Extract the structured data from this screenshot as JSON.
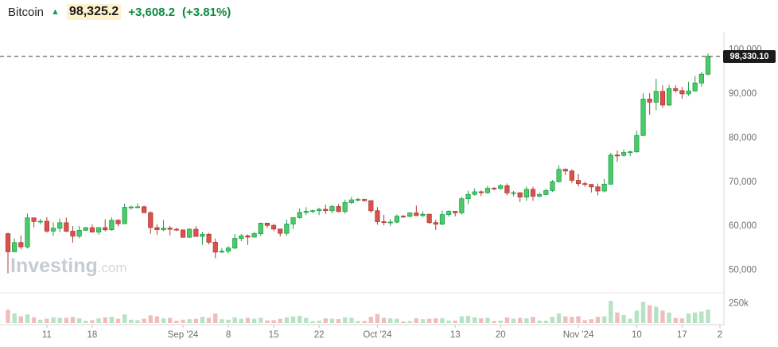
{
  "header": {
    "symbol": "Bitcoin",
    "arrow": "▲",
    "price": "98,325.2",
    "change": "+3,608.2",
    "change_pct": "(+3.81%)"
  },
  "watermark": {
    "bold": "Investing",
    "light": ".com"
  },
  "price_tag": "98,330.10",
  "colors": {
    "up": "#4ccb68",
    "up_border": "#1e9e4a",
    "down": "#d9524e",
    "down_border": "#b03a36",
    "vol_up": "#b5e3c3",
    "vol_down": "#f0bdbd",
    "axis_text": "#6f6f6f",
    "border": "#d8d8d8",
    "dashed_line": "#3c3c3c"
  },
  "chart_data": {
    "type": "candlestick",
    "title": "Bitcoin daily price with volume",
    "xlabel": "",
    "ylabel": "",
    "last_price": 98330.1,
    "y_axis": {
      "min": 46500,
      "max": 103000,
      "ticks": [
        100000,
        90000,
        80000,
        70000,
        60000,
        50000
      ],
      "labels": [
        "100,000",
        "90,000",
        "80,000",
        "70,000",
        "60,000",
        "50,000"
      ]
    },
    "volume_axis": {
      "tick_label": "250k",
      "tick_value": 250000,
      "max": 280000
    },
    "x_ticks": [
      {
        "index": 6,
        "label": "11"
      },
      {
        "index": 13,
        "label": "18"
      },
      {
        "index": 27,
        "label": "Sep '24"
      },
      {
        "index": 34,
        "label": "8"
      },
      {
        "index": 41,
        "label": "15"
      },
      {
        "index": 48,
        "label": "22"
      },
      {
        "index": 57,
        "label": "Oct '24"
      },
      {
        "index": 69,
        "label": "13"
      },
      {
        "index": 76,
        "label": "20"
      },
      {
        "index": 88,
        "label": "Nov '24"
      },
      {
        "index": 97,
        "label": "10"
      },
      {
        "index": 104,
        "label": "17"
      },
      {
        "index": 111,
        "label": "2"
      }
    ],
    "columns": [
      "date",
      "open",
      "high",
      "low",
      "close",
      "volume"
    ],
    "candles": [
      [
        "Aug 5",
        58120,
        58350,
        49110,
        54020,
        140000
      ],
      [
        "Aug 6",
        54020,
        57050,
        53950,
        56100,
        100000
      ],
      [
        "Aug 7",
        56100,
        57700,
        54600,
        55130,
        70000
      ],
      [
        "Aug 8",
        55130,
        62700,
        54750,
        61710,
        90000
      ],
      [
        "Aug 9",
        61710,
        61760,
        59560,
        60880,
        60000
      ],
      [
        "Aug 10",
        60880,
        61470,
        60250,
        60945,
        35000
      ],
      [
        "Aug 11",
        60945,
        61850,
        58350,
        58715,
        45000
      ],
      [
        "Aug 12",
        58715,
        60700,
        57660,
        59350,
        60000
      ],
      [
        "Aug 13",
        59350,
        61550,
        58450,
        60600,
        55000
      ],
      [
        "Aug 14",
        60600,
        61790,
        58470,
        58680,
        55000
      ],
      [
        "Aug 15",
        58680,
        59850,
        56100,
        57560,
        65000
      ],
      [
        "Aug 16",
        57560,
        59850,
        57100,
        58890,
        50000
      ],
      [
        "Aug 17",
        58890,
        59650,
        58830,
        59480,
        25000
      ],
      [
        "Aug 18",
        59480,
        60250,
        58450,
        58480,
        30000
      ],
      [
        "Aug 19",
        58480,
        59610,
        57880,
        59490,
        50000
      ],
      [
        "Aug 20",
        59490,
        61400,
        58620,
        59010,
        60000
      ],
      [
        "Aug 21",
        59010,
        61830,
        58790,
        61170,
        65000
      ],
      [
        "Aug 22",
        61170,
        61400,
        59750,
        60380,
        45000
      ],
      [
        "Aug 23",
        60380,
        64950,
        60370,
        64090,
        90000
      ],
      [
        "Aug 24",
        64090,
        64500,
        63580,
        64170,
        35000
      ],
      [
        "Aug 25",
        64170,
        65000,
        63830,
        64220,
        30000
      ],
      [
        "Aug 26",
        64220,
        64480,
        62830,
        62880,
        45000
      ],
      [
        "Aug 27",
        62880,
        63210,
        58120,
        59505,
        80000
      ],
      [
        "Aug 28",
        59505,
        60230,
        57860,
        59030,
        70000
      ],
      [
        "Aug 29",
        59030,
        61180,
        58740,
        59388,
        50000
      ],
      [
        "Aug 30",
        59388,
        59900,
        57730,
        59120,
        55000
      ],
      [
        "Aug 31",
        59120,
        59450,
        58768,
        58970,
        25000
      ],
      [
        "Sep 1",
        58970,
        59070,
        57210,
        57300,
        35000
      ],
      [
        "Sep 2",
        57300,
        59425,
        57128,
        59130,
        40000
      ],
      [
        "Sep 3",
        59130,
        59815,
        57435,
        57490,
        45000
      ],
      [
        "Sep 4",
        57490,
        58519,
        55606,
        58000,
        65000
      ],
      [
        "Sep 5",
        58000,
        58300,
        55650,
        56180,
        55000
      ],
      [
        "Sep 6",
        56180,
        57010,
        52550,
        53950,
        100000
      ],
      [
        "Sep 7",
        53950,
        54850,
        53740,
        54160,
        40000
      ],
      [
        "Sep 8",
        54160,
        55300,
        53630,
        54870,
        35000
      ],
      [
        "Sep 9",
        54870,
        58040,
        54600,
        57040,
        60000
      ],
      [
        "Sep 10",
        57040,
        58030,
        56400,
        57640,
        45000
      ],
      [
        "Sep 11",
        57640,
        57980,
        55550,
        57340,
        55000
      ],
      [
        "Sep 12",
        57340,
        58530,
        57320,
        58130,
        45000
      ],
      [
        "Sep 13",
        58130,
        60620,
        57630,
        60500,
        55000
      ],
      [
        "Sep 14",
        60500,
        60610,
        59470,
        60000,
        28000
      ],
      [
        "Sep 15",
        60000,
        60380,
        58690,
        59180,
        30000
      ],
      [
        "Sep 16",
        59180,
        59210,
        57490,
        58210,
        45000
      ],
      [
        "Sep 17",
        58210,
        61320,
        57600,
        60310,
        60000
      ],
      [
        "Sep 18",
        60310,
        61780,
        59170,
        61760,
        70000
      ],
      [
        "Sep 19",
        61760,
        63850,
        61550,
        62940,
        75000
      ],
      [
        "Sep 20",
        62940,
        64130,
        62350,
        63200,
        55000
      ],
      [
        "Sep 21",
        63200,
        63560,
        62750,
        63350,
        22000
      ],
      [
        "Sep 22",
        63350,
        64000,
        62360,
        63650,
        26000
      ],
      [
        "Sep 23",
        63650,
        64750,
        62550,
        63340,
        50000
      ],
      [
        "Sep 24",
        63340,
        64680,
        62700,
        64270,
        45000
      ],
      [
        "Sep 25",
        64270,
        64820,
        62960,
        63150,
        42000
      ],
      [
        "Sep 26",
        63150,
        65830,
        62670,
        65180,
        60000
      ],
      [
        "Sep 27",
        65180,
        66490,
        64850,
        65790,
        55000
      ],
      [
        "Sep 28",
        65790,
        66260,
        65430,
        65890,
        22000
      ],
      [
        "Sep 29",
        65890,
        66070,
        65400,
        65620,
        22000
      ],
      [
        "Sep 30",
        65620,
        65620,
        62860,
        63330,
        65000
      ],
      [
        "Oct 1",
        63330,
        64130,
        60170,
        60840,
        95000
      ],
      [
        "Oct 2",
        60840,
        62380,
        60000,
        60650,
        55000
      ],
      [
        "Oct 3",
        60650,
        61480,
        59830,
        60750,
        50000
      ],
      [
        "Oct 4",
        60750,
        62480,
        60460,
        62080,
        45000
      ],
      [
        "Oct 5",
        62080,
        62370,
        61690,
        62060,
        18000
      ],
      [
        "Oct 6",
        62060,
        62990,
        61820,
        62820,
        22000
      ],
      [
        "Oct 7",
        62820,
        64480,
        62130,
        62230,
        50000
      ],
      [
        "Oct 8",
        62230,
        63200,
        61870,
        62540,
        40000
      ],
      [
        "Oct 9",
        62540,
        62560,
        60320,
        60630,
        45000
      ],
      [
        "Oct 10",
        60630,
        61300,
        58950,
        60280,
        50000
      ],
      [
        "Oct 11",
        60280,
        63400,
        60060,
        62450,
        50000
      ],
      [
        "Oct 12",
        62450,
        63440,
        62030,
        63190,
        26000
      ],
      [
        "Oct 13",
        63190,
        63270,
        62050,
        62850,
        26000
      ],
      [
        "Oct 14",
        62850,
        66500,
        62460,
        66050,
        70000
      ],
      [
        "Oct 15",
        66050,
        67840,
        64800,
        67040,
        75000
      ],
      [
        "Oct 16",
        67040,
        68400,
        66750,
        67620,
        60000
      ],
      [
        "Oct 17",
        67620,
        67940,
        66660,
        67420,
        50000
      ],
      [
        "Oct 18",
        67420,
        68970,
        67170,
        68420,
        55000
      ],
      [
        "Oct 19",
        68420,
        68690,
        68010,
        68360,
        22000
      ],
      [
        "Oct 20",
        68360,
        69400,
        68060,
        69000,
        26000
      ],
      [
        "Oct 21",
        69000,
        69520,
        66840,
        67370,
        60000
      ],
      [
        "Oct 22",
        67370,
        67800,
        66560,
        67410,
        45000
      ],
      [
        "Oct 23",
        67410,
        67470,
        65260,
        66430,
        55000
      ],
      [
        "Oct 24",
        66430,
        68800,
        65590,
        68170,
        50000
      ],
      [
        "Oct 25",
        68170,
        68780,
        65570,
        66600,
        65000
      ],
      [
        "Oct 26",
        66600,
        67450,
        66400,
        67010,
        26000
      ],
      [
        "Oct 27",
        67010,
        68330,
        66900,
        67900,
        26000
      ],
      [
        "Oct 28",
        67900,
        70280,
        67580,
        69910,
        65000
      ],
      [
        "Oct 29",
        69910,
        73600,
        69730,
        72720,
        100000
      ],
      [
        "Oct 30",
        72720,
        72900,
        71400,
        72340,
        70000
      ],
      [
        "Oct 31",
        72340,
        72660,
        69590,
        70220,
        65000
      ],
      [
        "Nov 1",
        70220,
        71630,
        68810,
        69480,
        70000
      ],
      [
        "Nov 2",
        69480,
        69910,
        68780,
        69290,
        30000
      ],
      [
        "Nov 3",
        69290,
        69380,
        67480,
        68740,
        40000
      ],
      [
        "Nov 4",
        68740,
        69500,
        66830,
        67810,
        65000
      ],
      [
        "Nov 5",
        67810,
        70570,
        67470,
        69350,
        70000
      ],
      [
        "Nov 6",
        69350,
        76450,
        69280,
        75950,
        230000
      ],
      [
        "Nov 7",
        75950,
        76960,
        74400,
        75900,
        110000
      ],
      [
        "Nov 8",
        75900,
        77240,
        75580,
        76550,
        85000
      ],
      [
        "Nov 9",
        76550,
        76950,
        75710,
        76700,
        45000
      ],
      [
        "Nov 10",
        76700,
        81460,
        76490,
        80400,
        130000
      ],
      [
        "Nov 11",
        80400,
        89940,
        80220,
        88650,
        220000
      ],
      [
        "Nov 12",
        88650,
        89960,
        85070,
        87950,
        185000
      ],
      [
        "Nov 13",
        87950,
        93250,
        86140,
        90400,
        170000
      ],
      [
        "Nov 14",
        90400,
        91780,
        86670,
        87300,
        130000
      ],
      [
        "Nov 15",
        87300,
        91850,
        87100,
        91030,
        110000
      ],
      [
        "Nov 16",
        91030,
        91760,
        90080,
        90580,
        55000
      ],
      [
        "Nov 17",
        90580,
        91400,
        88720,
        89840,
        50000
      ],
      [
        "Nov 18",
        89840,
        92570,
        89380,
        90500,
        100000
      ],
      [
        "Nov 19",
        90500,
        93900,
        90370,
        92300,
        110000
      ],
      [
        "Nov 20",
        92300,
        94830,
        91500,
        94300,
        120000
      ],
      [
        "Nov 21",
        94300,
        98980,
        94060,
        98330,
        140000
      ]
    ]
  }
}
